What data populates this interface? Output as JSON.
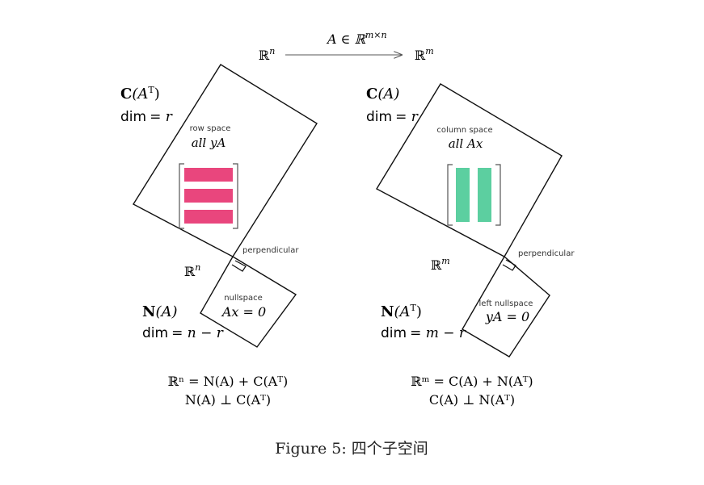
{
  "arrow": {
    "label": "A ∈ ℝ^{m×n}",
    "label_base": "A ∈ ℝ",
    "label_sup": "m×n",
    "from_base": "ℝ",
    "from_sup": "n",
    "to_base": "ℝ",
    "to_sup": "m"
  },
  "left": {
    "row_space": {
      "name": "C",
      "arg": "(A",
      "arg_sup": "T",
      "arg_close": ")",
      "dim_label": "dim",
      "dim_value": "= r",
      "title": "row space",
      "content": "all yA"
    },
    "space_base": "ℝ",
    "space_sup": "n",
    "perpendicular": "perpendicular",
    "nullspace": {
      "title": "nullspace",
      "equation": "Ax = 0",
      "name": "N",
      "arg": "(A)",
      "dim_label": "dim",
      "dim_value": "= n − r"
    },
    "sum_line": "ℝⁿ = N(A) + C(Aᵀ)",
    "perp_line": "N(A) ⊥ C(Aᵀ)",
    "bar_color": "#e9467d"
  },
  "right": {
    "column_space": {
      "name": "C",
      "arg": "(A)",
      "dim_label": "dim",
      "dim_value": "= r",
      "title": "column space",
      "content": "all Ax"
    },
    "space_base": "ℝ",
    "space_sup": "m",
    "perpendicular": "perpendicular",
    "left_nullspace": {
      "title": "left nullspace",
      "equation": "yA = 0",
      "name": "N",
      "arg": "(A",
      "arg_sup": "T",
      "arg_close": ")",
      "dim_label": "dim",
      "dim_value": "= m − r"
    },
    "sum_line": "ℝᵐ = C(A) + N(Aᵀ)",
    "perp_line": "C(A) ⊥ N(Aᵀ)",
    "bar_color": "#5ccfa0"
  },
  "caption": "Figure 5: 四个子空间"
}
